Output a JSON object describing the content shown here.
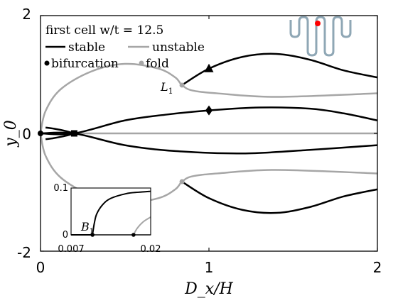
{
  "chart_data": {
    "type": "line",
    "title": "first cell w/t = 12.5",
    "xlabel": "D_x/H",
    "ylabel": "y_0",
    "xlim": [
      0,
      2
    ],
    "ylim": [
      -2,
      2
    ],
    "x_ticks": [
      "0",
      "1",
      "2"
    ],
    "y_ticks": [
      "-2",
      "0",
      "2"
    ],
    "grid": false,
    "legend": {
      "placement": "top-left",
      "entries": [
        {
          "label": "stable",
          "kind": "line",
          "color": "#000000"
        },
        {
          "label": "unstable",
          "kind": "line",
          "color": "#a6a6a6"
        },
        {
          "label": "bifurcation",
          "kind": "dot",
          "color": "#000000"
        },
        {
          "label": "fold",
          "kind": "dot",
          "color": "#a6a6a6"
        }
      ]
    },
    "colors": {
      "stable": "#000000",
      "unstable": "#a6a6a6",
      "marker_red": "#ff0000",
      "beam": "#8fa7b5"
    },
    "annotations": {
      "fold_label": "L",
      "fold_sub": "1",
      "bif_label": "B",
      "bif_sub": "1"
    },
    "series": [
      {
        "style": "unstable",
        "points": [
          [
            0,
            0
          ],
          [
            2,
            0
          ]
        ]
      },
      {
        "style": "unstable",
        "points": [
          [
            0,
            0
          ],
          [
            0.03,
            0.38
          ],
          [
            0.12,
            0.75
          ],
          [
            0.3,
            1.05
          ],
          [
            0.5,
            1.18
          ],
          [
            0.7,
            1.1
          ],
          [
            0.8,
            0.95
          ],
          [
            0.84,
            0.82
          ],
          [
            0.9,
            0.73
          ],
          [
            1.05,
            0.68
          ],
          [
            1.4,
            0.62
          ],
          [
            2,
            0.68
          ]
        ]
      },
      {
        "style": "unstable",
        "points": [
          [
            0,
            0
          ],
          [
            0.03,
            -0.38
          ],
          [
            0.12,
            -0.75
          ],
          [
            0.3,
            -1.05
          ],
          [
            0.5,
            -1.18
          ],
          [
            0.7,
            -1.1
          ],
          [
            0.8,
            -0.95
          ],
          [
            0.84,
            -0.82
          ],
          [
            0.9,
            -0.73
          ],
          [
            1.05,
            -0.68
          ],
          [
            1.4,
            -0.62
          ],
          [
            2,
            -0.68
          ]
        ]
      },
      {
        "style": "stable",
        "points": [
          [
            0.84,
            0.82
          ],
          [
            1,
            1.1
          ],
          [
            1.2,
            1.3
          ],
          [
            1.4,
            1.35
          ],
          [
            1.6,
            1.25
          ],
          [
            1.8,
            1.07
          ],
          [
            2,
            0.95
          ]
        ]
      },
      {
        "style": "stable",
        "points": [
          [
            0.84,
            -0.82
          ],
          [
            1,
            -1.1
          ],
          [
            1.2,
            -1.3
          ],
          [
            1.4,
            -1.35
          ],
          [
            1.6,
            -1.25
          ],
          [
            1.8,
            -1.07
          ],
          [
            2,
            -0.95
          ]
        ]
      },
      {
        "style": "stable",
        "points": [
          [
            0,
            0
          ],
          [
            0.2,
            0
          ],
          [
            0.5,
            0.22
          ],
          [
            0.75,
            0.32
          ],
          [
            1,
            0.39
          ],
          [
            1.3,
            0.44
          ],
          [
            1.6,
            0.42
          ],
          [
            1.8,
            0.34
          ],
          [
            2,
            0.22
          ]
        ]
      },
      {
        "style": "stable",
        "points": [
          [
            0,
            0
          ],
          [
            0.2,
            0
          ],
          [
            0.5,
            -0.2
          ],
          [
            0.8,
            -0.3
          ],
          [
            1.2,
            -0.34
          ],
          [
            1.6,
            -0.28
          ],
          [
            2,
            -0.2
          ]
        ]
      },
      {
        "style": "stable",
        "points": [
          [
            0.03,
            0.1
          ],
          [
            0.08,
            0.08
          ],
          [
            0.15,
            0.04
          ],
          [
            0.2,
            0
          ]
        ]
      },
      {
        "style": "stable",
        "points": [
          [
            0.03,
            -0.1
          ],
          [
            0.08,
            -0.08
          ],
          [
            0.15,
            -0.04
          ],
          [
            0.2,
            0
          ]
        ]
      }
    ],
    "markers": [
      {
        "type": "triangle",
        "x": 1,
        "y": 1.1,
        "color": "#000000"
      },
      {
        "type": "diamond",
        "x": 1,
        "y": 0.39,
        "color": "#000000"
      },
      {
        "type": "square",
        "x": 0.2,
        "y": 0,
        "color": "#000000"
      },
      {
        "type": "bifurcation",
        "x": 0,
        "y": 0,
        "color": "#000000"
      },
      {
        "type": "fold",
        "x": 0.84,
        "y": 0.82,
        "color": "#a6a6a6"
      },
      {
        "type": "fold",
        "x": 0.84,
        "y": -0.82,
        "color": "#a6a6a6"
      }
    ],
    "inset": {
      "xlim": [
        0.007,
        0.02
      ],
      "ylim": [
        0,
        0.1
      ],
      "x_ticks": [
        "0.007",
        "0.02"
      ],
      "y_ticks": [
        "0.1",
        "0"
      ],
      "series": [
        {
          "style": "stable",
          "points": [
            [
              0.007,
              0
            ],
            [
              0.0105,
              0
            ]
          ]
        },
        {
          "style": "unstable",
          "points": [
            [
              0.0105,
              0
            ],
            [
              0.02,
              0
            ]
          ]
        },
        {
          "style": "stable",
          "points": [
            [
              0.0105,
              0
            ],
            [
              0.0108,
              0.025
            ],
            [
              0.0112,
              0.045
            ],
            [
              0.0122,
              0.065
            ],
            [
              0.0135,
              0.078
            ],
            [
              0.016,
              0.088
            ],
            [
              0.018,
              0.091
            ],
            [
              0.02,
              0.093
            ]
          ]
        },
        {
          "style": "unstable",
          "points": [
            [
              0.0172,
              0
            ],
            [
              0.0178,
              0.014
            ],
            [
              0.0188,
              0.028
            ],
            [
              0.02,
              0.038
            ]
          ]
        }
      ],
      "markers": [
        {
          "type": "bifurcation",
          "x": 0.0105,
          "y": 0
        },
        {
          "type": "bifurcation",
          "x": 0.0172,
          "y": 0
        }
      ]
    }
  }
}
